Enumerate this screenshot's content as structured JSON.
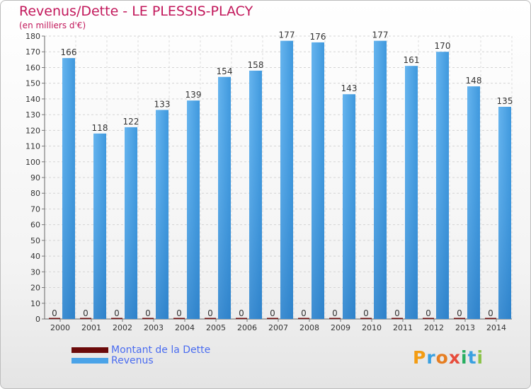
{
  "header": {
    "title": "Revenus/Dette - LE PLESSIS-PLACY",
    "subtitle": "(en milliers d'€)"
  },
  "colors": {
    "title": "#c2185b",
    "debt": "#6b0a0a",
    "revenue": "#3d9be0",
    "revenue_dark": "#2273bf",
    "legend_text": "#4a6cf0"
  },
  "legend": {
    "items": [
      {
        "label": "Montant de la Dette",
        "color": "#6b0a0a"
      },
      {
        "label": "Revenus",
        "color": "#4aa3e8"
      }
    ]
  },
  "brand": {
    "letters": [
      "P",
      "r",
      "o",
      "x",
      "i",
      "t",
      "i"
    ],
    "colors": [
      "#f39c12",
      "#3aa0e0",
      "#e67e22",
      "#e74c3c",
      "#27ae60",
      "#3aa0e0",
      "#8bc34a"
    ]
  },
  "chart_data": {
    "type": "bar",
    "title": "Revenus/Dette - LE PLESSIS-PLACY",
    "ylabel": "(en milliers d'€)",
    "categories": [
      "2000",
      "2001",
      "2002",
      "2003",
      "2004",
      "2005",
      "2006",
      "2007",
      "2008",
      "2009",
      "2010",
      "2011",
      "2012",
      "2013",
      "2014"
    ],
    "series": [
      {
        "name": "Montant de la Dette",
        "values": [
          0,
          0,
          0,
          0,
          0,
          0,
          0,
          0,
          0,
          0,
          0,
          0,
          0,
          0,
          0
        ]
      },
      {
        "name": "Revenus",
        "values": [
          166,
          118,
          122,
          133,
          139,
          154,
          158,
          177,
          176,
          143,
          177,
          161,
          170,
          148,
          135
        ]
      }
    ],
    "ylim": [
      0,
      180
    ],
    "yticks": [
      0,
      10,
      20,
      30,
      40,
      50,
      60,
      70,
      80,
      90,
      100,
      110,
      120,
      130,
      140,
      150,
      160,
      170,
      180
    ],
    "grid": true,
    "legend_position": "bottom-left"
  }
}
